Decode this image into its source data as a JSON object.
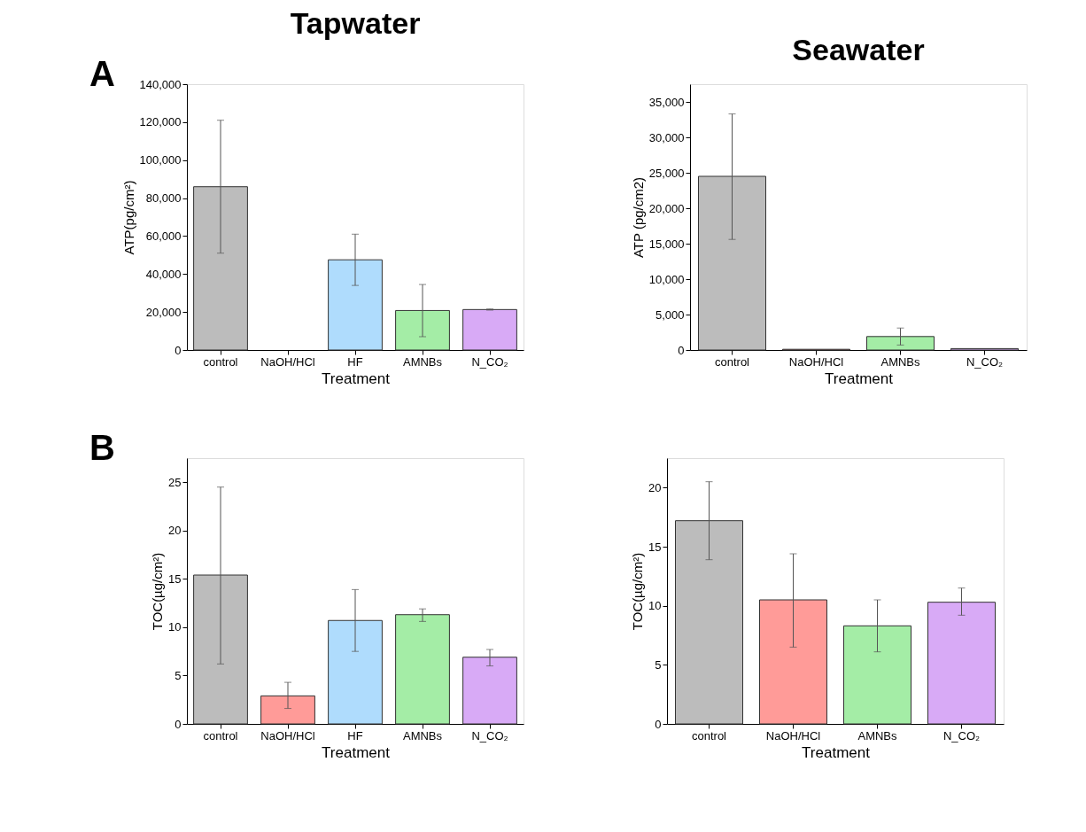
{
  "chart_data": [
    {
      "type": "bar",
      "title": "Tapwater",
      "annotations": [
        "A"
      ],
      "xlabel": "Treatment",
      "ylabel": "ATP(pg/cm²)",
      "categories": [
        "control",
        "NaOH/HCl",
        "HF",
        "AMNBs",
        "N_CO₂"
      ],
      "values": [
        86000,
        null,
        47500,
        20800,
        21300
      ],
      "errors": [
        [
          51000,
          121000
        ],
        null,
        [
          34000,
          61000
        ],
        [
          7000,
          34500
        ],
        [
          21000,
          21600
        ]
      ],
      "colors": [
        "#bcbcbc",
        "#ff9b98",
        "#afdcfd",
        "#a4eda6",
        "#d8aaf6"
      ],
      "ylim": [
        0,
        140000
      ],
      "yticks": [
        0,
        {
          "value": 20000,
          "label": "20,000"
        },
        {
          "value": 40000,
          "label": "40,000"
        },
        {
          "value": 60000,
          "label": "60,000"
        },
        {
          "value": 80000,
          "label": "80,000"
        },
        {
          "value": 100000,
          "label": "100,000"
        },
        {
          "value": 120000,
          "label": "120,000"
        },
        {
          "value": 140000,
          "label": "140,000"
        }
      ],
      "grid": false
    },
    {
      "type": "bar",
      "title": "Seawater",
      "xlabel": "Treatment",
      "ylabel": "ATP (pg/cm2)",
      "categories": [
        "control",
        "NaOH/HCl",
        "AMNBs",
        "N_CO₂"
      ],
      "values": [
        24500,
        100,
        1900,
        200
      ],
      "errors": [
        [
          15600,
          33300
        ],
        null,
        [
          700,
          3100
        ],
        null
      ],
      "colors": [
        "#bcbcbc",
        "#ff9b98",
        "#a4eda6",
        "#d8aaf6"
      ],
      "ylim": [
        0,
        37500
      ],
      "yticks": [
        0,
        {
          "value": 5000,
          "label": "5,000"
        },
        {
          "value": 10000,
          "label": "10,000"
        },
        {
          "value": 15000,
          "label": "15,000"
        },
        {
          "value": 20000,
          "label": "20,000"
        },
        {
          "value": 25000,
          "label": "25,000"
        },
        {
          "value": 30000,
          "label": "30,000"
        },
        {
          "value": 35000,
          "label": "35,000"
        }
      ],
      "grid": false
    },
    {
      "type": "bar",
      "annotations": [
        "B"
      ],
      "xlabel": "Treatment",
      "ylabel": "TOC(µg/cm²)",
      "categories": [
        "control",
        "NaOH/HCl",
        "HF",
        "AMNBs",
        "N_CO₂"
      ],
      "values": [
        15.4,
        2.9,
        10.7,
        11.3,
        6.9
      ],
      "errors": [
        [
          6.2,
          24.5
        ],
        [
          1.6,
          4.3
        ],
        [
          7.5,
          13.9
        ],
        [
          10.6,
          11.9
        ],
        [
          6.0,
          7.7
        ]
      ],
      "colors": [
        "#bcbcbc",
        "#ff9b98",
        "#afdcfd",
        "#a4eda6",
        "#d8aaf6"
      ],
      "ylim": [
        0,
        27.5
      ],
      "yticks": [
        0,
        5,
        10,
        15,
        20,
        25
      ],
      "grid": false
    },
    {
      "type": "bar",
      "xlabel": "Treatment",
      "ylabel": "TOC(µg/cm²)",
      "categories": [
        "control",
        "NaOH/HCl",
        "AMNBs",
        "N_CO₂"
      ],
      "values": [
        17.2,
        10.5,
        8.3,
        10.3
      ],
      "errors": [
        [
          13.9,
          20.5
        ],
        [
          6.5,
          14.4
        ],
        [
          6.1,
          10.5
        ],
        [
          9.2,
          11.5
        ]
      ],
      "colors": [
        "#bcbcbc",
        "#ff9b98",
        "#a4eda6",
        "#d8aaf6"
      ],
      "ylim": [
        0,
        22.5
      ],
      "yticks": [
        0,
        5,
        10,
        15,
        20
      ],
      "grid": false
    }
  ]
}
